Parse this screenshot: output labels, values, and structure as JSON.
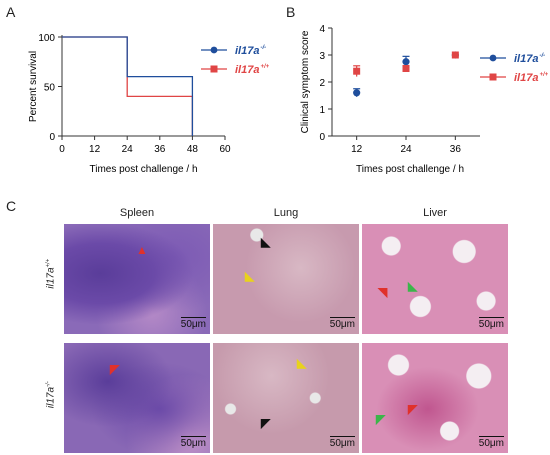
{
  "panel_labels": [
    "A",
    "B",
    "C"
  ],
  "chart_data": [
    {
      "type": "line",
      "step": true,
      "xlabel": "Times post challenge  / h",
      "ylabel": "Percent survival",
      "xlim": [
        0,
        60
      ],
      "ylim": [
        0,
        100
      ],
      "xticks": [
        "0",
        "12",
        "24",
        "36",
        "48",
        "60"
      ],
      "yticks": [
        "0",
        "50",
        "100"
      ],
      "grid": false,
      "legend_position": "right",
      "series": [
        {
          "name": "il17a",
          "superscript": "-/-",
          "color": "#1f4e9c",
          "marker": "circle",
          "x": [
            0,
            24,
            24,
            48,
            48
          ],
          "y": [
            100,
            100,
            60,
            60,
            0
          ]
        },
        {
          "name": "il17a",
          "superscript": "+/+",
          "color": "#e04545",
          "marker": "square",
          "x": [
            0,
            24,
            24,
            48,
            48
          ],
          "y": [
            100,
            100,
            40,
            40,
            0
          ]
        }
      ]
    },
    {
      "type": "scatter",
      "xlabel": "Times post challenge  / h",
      "ylabel": "Clinical symptom score",
      "xlim": [
        6,
        42
      ],
      "ylim": [
        0,
        4
      ],
      "xticks": [
        "12",
        "24",
        "36"
      ],
      "yticks": [
        "0",
        "1",
        "2",
        "3",
        "4"
      ],
      "grid": false,
      "legend_position": "right",
      "series": [
        {
          "name": "il17a",
          "superscript": "-/-",
          "color": "#1f4e9c",
          "marker": "circle",
          "x": [
            12,
            24,
            36
          ],
          "y": [
            1.6,
            2.75,
            3.0
          ],
          "err": [
            0.15,
            0.2,
            0.0
          ]
        },
        {
          "name": "il17a",
          "superscript": "+/+",
          "color": "#e04545",
          "marker": "square",
          "x": [
            12,
            24,
            36
          ],
          "y": [
            2.4,
            2.5,
            3.0
          ],
          "err": [
            0.2,
            0.05,
            0.0
          ]
        }
      ]
    }
  ],
  "histology": {
    "columns": [
      "Spleen",
      "Lung",
      "Liver"
    ],
    "rows": [
      {
        "label": "il17a",
        "sup": "+/+"
      },
      {
        "label": "il17a",
        "sup": "-/-"
      }
    ],
    "scale_bar": "50μm",
    "arrow_colors": {
      "red": "#e0312b",
      "yellow": "#e8d21c",
      "black": "#111111",
      "green": "#3cb54a"
    }
  }
}
